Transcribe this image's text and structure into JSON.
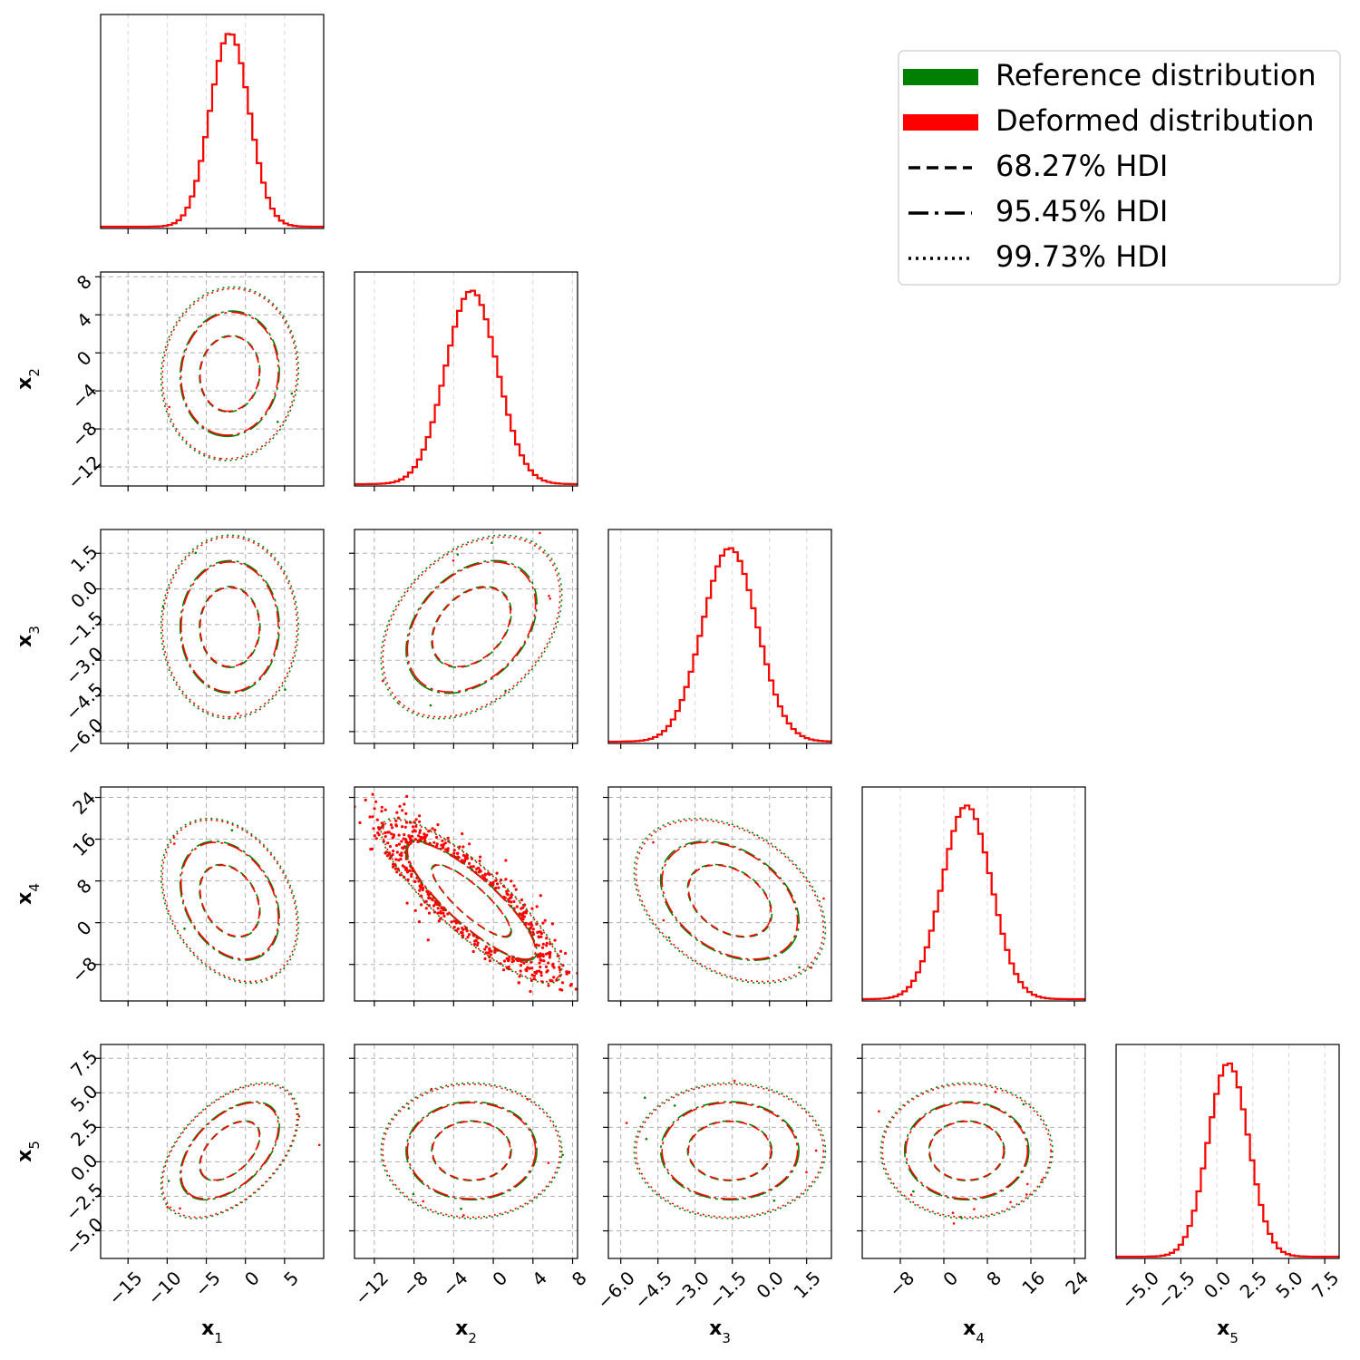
{
  "chart_data": {
    "type": "corner",
    "dimensions": [
      {
        "label": "x",
        "sub": "1",
        "range": [
          -18.5,
          10
        ],
        "ticks": [
          -15,
          -10,
          -5,
          0,
          5
        ],
        "tick_labels": [
          "−15",
          "−10",
          "−5",
          "0",
          "5"
        ],
        "mean": -2.0,
        "sd": 2.5
      },
      {
        "label": "x",
        "sub": "2",
        "range": [
          -14,
          8.5
        ],
        "ticks": [
          -12,
          -8,
          -4,
          0,
          4,
          8
        ],
        "tick_labels": [
          "−12",
          "−8",
          "−4",
          "0",
          "4",
          "8"
        ],
        "mean": -2.2,
        "sd": 2.6
      },
      {
        "label": "x",
        "sub": "3",
        "range": [
          -6.5,
          2.5
        ],
        "ticks": [
          -6.0,
          -4.5,
          -3.0,
          -1.5,
          0.0,
          1.5
        ],
        "tick_labels": [
          "−6.0",
          "−4.5",
          "−3.0",
          "−1.5",
          "0.0",
          "1.5"
        ],
        "mean": -1.6,
        "sd": 1.1
      },
      {
        "label": "x",
        "sub": "4",
        "range": [
          -15,
          26
        ],
        "ticks": [
          -8,
          0,
          8,
          16,
          24
        ],
        "tick_labels": [
          "−8",
          "0",
          "8",
          "16",
          "24"
        ],
        "mean": 4.2,
        "sd": 4.5
      },
      {
        "label": "x",
        "sub": "5",
        "range": [
          -7,
          8.5
        ],
        "ticks": [
          -5.0,
          -2.5,
          0.0,
          2.5,
          5.0,
          7.5
        ],
        "tick_labels": [
          "−5.0",
          "−2.5",
          "0.0",
          "2.5",
          "5.0",
          "7.5"
        ],
        "mean": 0.8,
        "sd": 1.4
      }
    ],
    "correlations": {
      "2-1": 0.05,
      "3-1": 0.0,
      "3-2": 0.35,
      "4-1": -0.3,
      "4-2": -0.85,
      "4-3": -0.35,
      "5-1": 0.5,
      "5-2": 0.0,
      "5-3": 0.0,
      "5-4": 0.0
    },
    "hdi_levels": [
      0.6827,
      0.9545,
      0.9973
    ],
    "series": [
      {
        "name": "Reference distribution",
        "color": "#008000"
      },
      {
        "name": "Deformed distribution",
        "color": "#ff0000"
      }
    ],
    "legend": {
      "placement": "top-right",
      "entries": [
        {
          "label": "Reference distribution",
          "style": "patch",
          "color": "#008000"
        },
        {
          "label": "Deformed distribution",
          "style": "patch",
          "color": "#ff0000"
        },
        {
          "label": "68.27% HDI",
          "style": "dashed",
          "color": "#000000"
        },
        {
          "label": "95.45% HDI",
          "style": "dashdot",
          "color": "#000000"
        },
        {
          "label": "99.73% HDI",
          "style": "dotted",
          "color": "#000000"
        }
      ]
    },
    "grid": true
  }
}
